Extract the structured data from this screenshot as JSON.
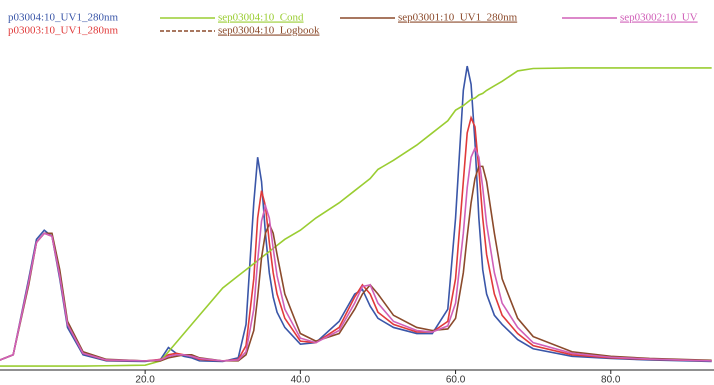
{
  "chart_data": {
    "type": "line",
    "x": [
      1,
      3,
      5,
      6,
      7,
      8,
      9,
      10,
      12,
      15,
      20,
      22,
      23,
      24,
      25,
      26,
      27,
      30,
      32,
      33,
      34,
      34.5,
      35,
      35.5,
      36,
      36.5,
      37,
      38,
      40,
      42,
      45,
      47,
      48,
      49,
      50,
      52,
      55,
      57,
      59,
      60,
      61,
      61.5,
      62,
      62.5,
      63,
      63.5,
      64,
      65,
      66,
      68,
      70,
      75,
      80,
      85,
      93
    ],
    "xlim": [
      1.3,
      93.3
    ],
    "xticks": [
      {
        "value": 20,
        "label": "20.0"
      },
      {
        "value": 40,
        "label": "40.0"
      },
      {
        "value": 60,
        "label": "60.0"
      },
      {
        "value": 80,
        "label": "80.0"
      }
    ],
    "ylim": [
      0,
      102
    ],
    "series": [
      {
        "name": "p03004:10_UV1_280nm",
        "color": "#3a56a8",
        "values": [
          3,
          5,
          30,
          43,
          46,
          44,
          30,
          14,
          5,
          3,
          2.8,
          3.5,
          7.4,
          5.5,
          4.5,
          4,
          3,
          2.8,
          4,
          15,
          55,
          70,
          62,
          45,
          32,
          24,
          19,
          14,
          8.5,
          9,
          16,
          25,
          26.5,
          21,
          17,
          14,
          12,
          12,
          20,
          50,
          92,
          100,
          94,
          75,
          50,
          33,
          25,
          18,
          15,
          10,
          7,
          4.5,
          3.8,
          3.3,
          2.8
        ]
      },
      {
        "name": "p03003:10_UV1_280nm",
        "color": "#e03a3a",
        "values": [
          3,
          5,
          29,
          42,
          45,
          44,
          31,
          15,
          5.5,
          3.2,
          3,
          3.5,
          5,
          5.5,
          5,
          4.5,
          3.5,
          3,
          3.5,
          8,
          30,
          50,
          59,
          54,
          42,
          32,
          25,
          17,
          9.5,
          9,
          14,
          24,
          28,
          25,
          19,
          15,
          12.5,
          12.5,
          16,
          30,
          62,
          78,
          83,
          80,
          66,
          50,
          38,
          25,
          18,
          12,
          8,
          5,
          4,
          3.5,
          3
        ]
      },
      {
        "name": "sep03004:10_Cond",
        "color": "#9acd32",
        "values": [
          1.3,
          1.3,
          1.3,
          1.3,
          1.3,
          1.3,
          1.3,
          1.3,
          1.3,
          1.4,
          1.6,
          3,
          6,
          9,
          12,
          15,
          18,
          27,
          31,
          33,
          35,
          36,
          37,
          38,
          39,
          40,
          41,
          43,
          46,
          50,
          55,
          59,
          61,
          63,
          66,
          69,
          74,
          78,
          82,
          85.5,
          87,
          88,
          89,
          89.5,
          90.5,
          91,
          92,
          93.5,
          95,
          98.4,
          99.2,
          99.4,
          99.4,
          99.4,
          99.4
        ]
      },
      {
        "name": "sep03001:10_UV1_280nm",
        "color": "#8b4a2b",
        "values": [
          3,
          5,
          28,
          42,
          45,
          45,
          33,
          16,
          6,
          3.5,
          3,
          3,
          4,
          4.5,
          5,
          5,
          4,
          3,
          3,
          5,
          13,
          24,
          37,
          45,
          48,
          45,
          38,
          25,
          12,
          9.5,
          12,
          20,
          25,
          28,
          25,
          18,
          14,
          13,
          13.5,
          17,
          32,
          44,
          55,
          63,
          67,
          67,
          62,
          45,
          30,
          17,
          11,
          6,
          4.5,
          3.8,
          3.2
        ]
      },
      {
        "name": "sep03002:10_UV",
        "color": "#d060b8",
        "values": [
          3,
          5,
          29,
          42,
          45,
          44,
          31,
          15,
          5.5,
          3.3,
          3,
          3.3,
          4.5,
          5,
          5,
          4.5,
          3.8,
          3,
          3.3,
          6,
          20,
          36,
          49,
          54,
          50,
          40,
          31,
          20,
          10.5,
          9,
          13,
          22,
          27.5,
          28,
          22,
          16,
          13,
          12.5,
          14.5,
          22,
          45,
          60,
          70,
          73,
          70,
          60,
          48,
          32,
          22,
          14,
          9,
          5.5,
          4.2,
          3.6,
          3
        ]
      },
      {
        "name": "sep03004:10_Logbook",
        "color": "#8b4a2b",
        "dashed": true
      }
    ]
  }
}
